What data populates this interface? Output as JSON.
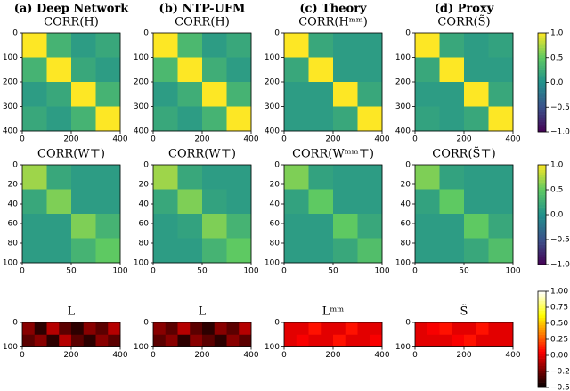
{
  "chart_data": [
    {
      "type": "heatmap",
      "title": "(a) Deep Network",
      "subtitle": "CORR(H)",
      "colormap": "viridis",
      "clim": [
        -1,
        1
      ],
      "invert_y": true,
      "xlim": [
        0,
        400
      ],
      "ylim": [
        0,
        400
      ],
      "xticks": [
        0,
        200,
        400
      ],
      "yticks": [
        0,
        100,
        200,
        300,
        400
      ],
      "values": [
        [
          1,
          0.3,
          0.1,
          0.2
        ],
        [
          0.3,
          1,
          0.2,
          0.1
        ],
        [
          0.1,
          0.2,
          1,
          0.3
        ],
        [
          0.2,
          0.1,
          0.3,
          1
        ]
      ]
    },
    {
      "type": "heatmap",
      "title": "(b) NTP-UFM",
      "subtitle": "CORR(H)",
      "colormap": "viridis",
      "clim": [
        -1,
        1
      ],
      "invert_y": true,
      "xlim": [
        0,
        400
      ],
      "ylim": [
        0,
        400
      ],
      "xticks": [
        0,
        200,
        400
      ],
      "yticks": [
        0,
        100,
        200,
        300,
        400
      ],
      "values": [
        [
          1,
          0.35,
          0.1,
          0.2
        ],
        [
          0.35,
          1,
          0.25,
          0.1
        ],
        [
          0.1,
          0.25,
          1,
          0.3
        ],
        [
          0.2,
          0.1,
          0.3,
          1
        ]
      ]
    },
    {
      "type": "heatmap",
      "title": "(c) Theory",
      "subtitle": "CORR(Hᵐᵐ)",
      "colormap": "viridis",
      "clim": [
        -1,
        1
      ],
      "invert_y": true,
      "xlim": [
        0,
        400
      ],
      "ylim": [
        0,
        400
      ],
      "xticks": [
        0,
        200,
        400
      ],
      "yticks": [
        0,
        100,
        200,
        300,
        400
      ],
      "values": [
        [
          1,
          0.2,
          0.1,
          0.1
        ],
        [
          0.2,
          1,
          0.1,
          0.1
        ],
        [
          0.1,
          0.1,
          1,
          0.2
        ],
        [
          0.1,
          0.1,
          0.2,
          1
        ]
      ]
    },
    {
      "type": "heatmap",
      "title": "(d) Proxy",
      "subtitle": "CORR(S̃)",
      "colormap": "viridis",
      "clim": [
        -1,
        1
      ],
      "invert_y": true,
      "xlim": [
        0,
        400
      ],
      "ylim": [
        0,
        400
      ],
      "xticks": [
        0,
        200,
        400
      ],
      "yticks": [
        0,
        100,
        200,
        300,
        400
      ],
      "values": [
        [
          1,
          0.2,
          0.1,
          0.15
        ],
        [
          0.2,
          1,
          0.1,
          0.1
        ],
        [
          0.1,
          0.1,
          1,
          0.2
        ],
        [
          0.15,
          0.1,
          0.2,
          1
        ]
      ]
    },
    {
      "type": "heatmap",
      "subtitle": "CORR(W⊤)",
      "colormap": "viridis",
      "clim": [
        -1,
        1
      ],
      "invert_y": true,
      "xlim": [
        0,
        100
      ],
      "ylim": [
        0,
        100
      ],
      "xticks": [
        0,
        50,
        100
      ],
      "yticks": [
        0,
        20,
        40,
        60,
        80,
        100
      ],
      "values": [
        [
          0.7,
          0.2,
          0.1,
          0.1
        ],
        [
          0.2,
          0.6,
          0.1,
          0.1
        ],
        [
          0.1,
          0.1,
          0.6,
          0.3
        ],
        [
          0.1,
          0.1,
          0.3,
          0.5
        ]
      ]
    },
    {
      "type": "heatmap",
      "subtitle": "CORR(W⊤)",
      "colormap": "viridis",
      "clim": [
        -1,
        1
      ],
      "invert_y": true,
      "xlim": [
        0,
        100
      ],
      "ylim": [
        0,
        100
      ],
      "xticks": [
        0,
        50,
        100
      ],
      "yticks": [
        0,
        20,
        40,
        60,
        80,
        100
      ],
      "values": [
        [
          0.7,
          0.2,
          0.1,
          0.1
        ],
        [
          0.2,
          0.6,
          0.15,
          0.1
        ],
        [
          0.1,
          0.15,
          0.6,
          0.3
        ],
        [
          0.1,
          0.1,
          0.3,
          0.5
        ]
      ]
    },
    {
      "type": "heatmap",
      "subtitle": "CORR(Wᵐᵐ⊤)",
      "colormap": "viridis",
      "clim": [
        -1,
        1
      ],
      "invert_y": true,
      "xlim": [
        0,
        100
      ],
      "ylim": [
        0,
        100
      ],
      "xticks": [
        0,
        50,
        100
      ],
      "yticks": [
        0,
        20,
        40,
        60,
        80,
        100
      ],
      "values": [
        [
          0.6,
          0.15,
          0.1,
          0.1
        ],
        [
          0.15,
          0.5,
          0.1,
          0.1
        ],
        [
          0.1,
          0.1,
          0.5,
          0.2
        ],
        [
          0.1,
          0.1,
          0.2,
          0.4
        ]
      ]
    },
    {
      "type": "heatmap",
      "subtitle": "CORR(S̃⊤)",
      "colormap": "viridis",
      "clim": [
        -1,
        1
      ],
      "invert_y": true,
      "xlim": [
        0,
        100
      ],
      "ylim": [
        0,
        100
      ],
      "xticks": [
        0,
        50,
        100
      ],
      "yticks": [
        0,
        20,
        40,
        60,
        80,
        100
      ],
      "values": [
        [
          0.6,
          0.15,
          0.1,
          0.1
        ],
        [
          0.15,
          0.5,
          0.1,
          0.1
        ],
        [
          0.1,
          0.1,
          0.5,
          0.2
        ],
        [
          0.1,
          0.1,
          0.2,
          0.4
        ]
      ]
    },
    {
      "type": "heatmap",
      "subtitle": "L",
      "colormap": "hot",
      "clim": [
        -0.5,
        1
      ],
      "invert_y": true,
      "xlim": [
        0,
        400
      ],
      "ylim": [
        0,
        100
      ],
      "xticks": [
        0,
        200,
        400
      ],
      "yticks": [
        0,
        100
      ],
      "values": [
        [
          -0.2,
          -0.4,
          -0.1,
          -0.3,
          -0.4,
          -0.2,
          -0.3,
          -0.1
        ],
        [
          -0.3,
          -0.2,
          -0.4,
          -0.1,
          -0.3,
          -0.4,
          -0.2,
          -0.3
        ]
      ]
    },
    {
      "type": "heatmap",
      "subtitle": "L",
      "colormap": "hot",
      "clim": [
        -0.5,
        1
      ],
      "invert_y": true,
      "xlim": [
        0,
        400
      ],
      "ylim": [
        0,
        100
      ],
      "xticks": [
        0,
        200,
        400
      ],
      "yticks": [
        0,
        100
      ],
      "values": [
        [
          -0.2,
          -0.3,
          -0.1,
          -0.3,
          -0.4,
          -0.2,
          -0.3,
          -0.1
        ],
        [
          -0.3,
          -0.2,
          -0.4,
          -0.2,
          -0.3,
          -0.4,
          -0.2,
          -0.3
        ]
      ]
    },
    {
      "type": "heatmap",
      "subtitle": "Lᵐᵐ",
      "colormap": "hot",
      "clim": [
        -0.5,
        1
      ],
      "invert_y": true,
      "xlim": [
        0,
        400
      ],
      "ylim": [
        0,
        100
      ],
      "xticks": [
        0,
        200,
        400
      ],
      "yticks": [
        0,
        100
      ],
      "values": [
        [
          0,
          0,
          0.1,
          0,
          0,
          0.1,
          0,
          0
        ],
        [
          0,
          0.05,
          0,
          0,
          0.1,
          0,
          0,
          0.05
        ]
      ]
    },
    {
      "type": "heatmap",
      "subtitle": "S̃",
      "colormap": "hot",
      "clim": [
        -0.5,
        1
      ],
      "invert_y": true,
      "xlim": [
        0,
        400
      ],
      "ylim": [
        0,
        100
      ],
      "xticks": [
        0,
        200,
        400
      ],
      "yticks": [
        0,
        100
      ],
      "values": [
        [
          0,
          0.05,
          0.1,
          0,
          0,
          0.1,
          0,
          0
        ],
        [
          0,
          0,
          0,
          0.05,
          0.1,
          0,
          0,
          0
        ]
      ]
    },
    {
      "type": "colorbar",
      "colormap": "viridis",
      "ylim": [
        -1,
        1
      ],
      "yticks": [
        {
          "value": -1,
          "label": "−1.0"
        },
        {
          "value": -0.5,
          "label": "−0.5"
        },
        {
          "value": 0,
          "label": "0.0"
        },
        {
          "value": 0.5,
          "label": "0.5"
        },
        {
          "value": 1,
          "label": "1.0"
        }
      ]
    },
    {
      "type": "colorbar",
      "colormap": "viridis",
      "ylim": [
        -1,
        1
      ],
      "yticks": [
        {
          "value": -1,
          "label": "−1.0"
        },
        {
          "value": -0.5,
          "label": "−0.5"
        },
        {
          "value": 0,
          "label": "0.0"
        },
        {
          "value": 0.5,
          "label": "0.5"
        },
        {
          "value": 1,
          "label": "1.0"
        }
      ]
    },
    {
      "type": "colorbar",
      "colormap": "hot",
      "ylim": [
        -0.5,
        1
      ],
      "yticks": [
        {
          "value": -0.5,
          "label": "−0.50"
        },
        {
          "value": -0.25,
          "label": "−0.25"
        },
        {
          "value": 0,
          "label": "0.00"
        },
        {
          "value": 0.25,
          "label": "0.25"
        },
        {
          "value": 0.5,
          "label": "0.50"
        },
        {
          "value": 0.75,
          "label": "0.75"
        },
        {
          "value": 1,
          "label": "1.00"
        }
      ]
    }
  ]
}
